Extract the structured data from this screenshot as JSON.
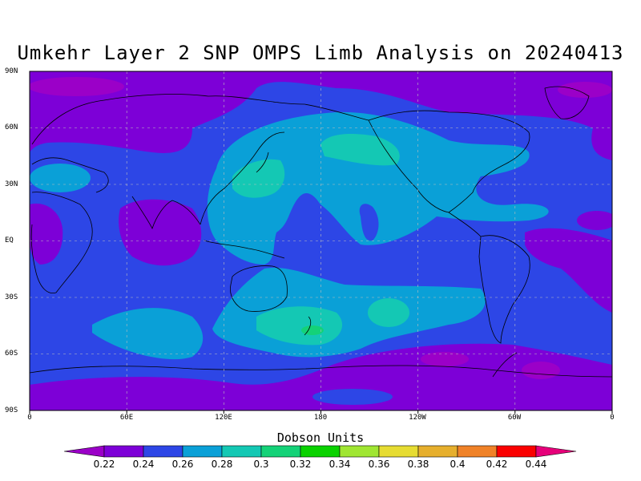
{
  "title": "Umkehr Layer 2 SNP OMPS Limb Analysis on 20240413",
  "lat_labels": [
    "90N",
    "60N",
    "30N",
    "EQ",
    "30S",
    "60S",
    "90S"
  ],
  "lon_labels": [
    "0",
    "60E",
    "120E",
    "180",
    "120W",
    "60W",
    "0"
  ],
  "colorbar": {
    "title": "Dobson Units",
    "labels": [
      "0.22",
      "0.24",
      "0.26",
      "0.28",
      "0.3",
      "0.32",
      "0.34",
      "0.36",
      "0.38",
      "0.4",
      "0.42",
      "0.44"
    ],
    "colors": [
      "#9b00c8",
      "#7d00d7",
      "#2d46e6",
      "#0aa0d7",
      "#14c8b4",
      "#14d278",
      "#0ad200",
      "#a0e632",
      "#e6dc32",
      "#e6af2d",
      "#f08228",
      "#fa0000",
      "#e6007a"
    ]
  },
  "chart_data": {
    "type": "heatmap",
    "title": "Umkehr Layer 2 SNP OMPS Limb Analysis on 20240413",
    "xlabel": "",
    "ylabel": "",
    "xlim": [
      0,
      360
    ],
    "ylim": [
      -90,
      90
    ],
    "colorbar_label": "Dobson Units",
    "levels": [
      0.22,
      0.24,
      0.26,
      0.28,
      0.3,
      0.32,
      0.34,
      0.36,
      0.38,
      0.4,
      0.42,
      0.44
    ],
    "background_level_range": [
      0.24,
      0.26
    ],
    "regions": [
      {
        "name": "arctic-low",
        "value_range": [
          0.22,
          0.24
        ]
      },
      {
        "name": "north-pacific-high",
        "value_range": [
          0.26,
          0.28
        ]
      },
      {
        "name": "north-pacific-core",
        "value_range": [
          0.28,
          0.3
        ]
      },
      {
        "name": "east-asia-core",
        "value_range": [
          0.28,
          0.3
        ]
      },
      {
        "name": "north-america",
        "value_range": [
          0.26,
          0.28
        ]
      },
      {
        "name": "africa-tropics-low",
        "value_range": [
          0.22,
          0.24
        ]
      },
      {
        "name": "indian-ocean-low",
        "value_range": [
          0.22,
          0.24
        ]
      },
      {
        "name": "southern-midlat-band",
        "value_range": [
          0.26,
          0.28
        ]
      },
      {
        "name": "new-zealand-core",
        "value_range": [
          0.28,
          0.32
        ]
      },
      {
        "name": "south-pacific-core",
        "value_range": [
          0.28,
          0.3
        ]
      },
      {
        "name": "antarctic-low",
        "value_range": [
          0.22,
          0.24
        ]
      }
    ]
  }
}
